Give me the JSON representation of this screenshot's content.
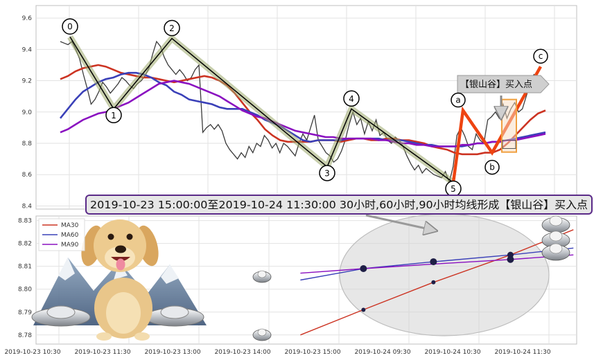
{
  "colors": {
    "price": "#3a3a3a",
    "ma30": "#cc3322",
    "ma60": "#3a40b8",
    "ma90": "#8a10c0",
    "wave": "#000000",
    "wave_halo": "#9aa86a",
    "signal": "#ee4411",
    "highlight": "#f0a040"
  },
  "chart_data": [
    {
      "type": "line",
      "panel": "top",
      "ylim": [
        8.38,
        9.68
      ],
      "yticks": [
        "8.4",
        "8.6",
        "8.8",
        "9.0",
        "9.2",
        "9.4",
        "9.6"
      ],
      "grid": true,
      "series": [
        {
          "key": "price",
          "values": [
            9.45,
            9.44,
            9.43,
            9.45,
            9.4,
            9.34,
            9.24,
            9.15,
            9.05,
            9.08,
            9.13,
            9.19,
            9.16,
            9.12,
            9.15,
            9.18,
            9.22,
            9.2,
            9.17,
            9.15,
            9.18,
            9.2,
            9.23,
            9.28,
            9.37,
            9.45,
            9.42,
            9.35,
            9.3,
            9.27,
            9.24,
            9.27,
            9.24,
            9.2,
            9.22,
            9.27,
            9.3,
            8.87,
            8.9,
            8.92,
            8.89,
            8.92,
            8.88,
            8.8,
            8.76,
            8.73,
            8.7,
            8.74,
            8.71,
            8.78,
            8.74,
            8.8,
            8.78,
            8.85,
            8.82,
            8.77,
            8.8,
            8.74,
            8.8,
            8.78,
            8.75,
            8.72,
            8.8,
            8.86,
            8.82,
            8.9,
            8.98,
            8.82,
            8.78,
            8.74,
            8.72,
            8.68,
            8.7,
            8.75,
            8.82,
            8.92,
            9.0,
            8.92,
            8.96,
            8.86,
            8.94,
            8.88,
            8.95,
            8.85,
            8.87,
            8.82,
            8.8,
            8.84,
            8.82,
            8.78,
            8.72,
            8.67,
            8.63,
            8.66,
            8.61,
            8.64,
            8.62,
            8.6,
            8.59,
            8.58,
            8.62,
            8.55,
            8.65,
            8.85,
            8.9,
            8.85,
            8.78,
            8.76,
            8.86,
            8.82,
            8.8,
            8.95,
            8.97,
            9.0,
            8.96,
            9.05,
            8.96,
            9.02,
            9.06,
            9.0,
            9.02,
            9.1,
            9.18,
            9.24,
            9.22,
            9.2,
            9.19
          ]
        },
        {
          "key": "ma30",
          "values": [
            9.21,
            9.23,
            9.26,
            9.28,
            9.29,
            9.3,
            9.29,
            9.27,
            9.25,
            9.24,
            9.23,
            9.22,
            9.22,
            9.21,
            9.2,
            9.19,
            9.2,
            9.21,
            9.22,
            9.23,
            9.22,
            9.2,
            9.17,
            9.12,
            9.06,
            9.0,
            8.95,
            8.89,
            8.85,
            8.82,
            8.81,
            8.81,
            8.81,
            8.81,
            8.82,
            8.82,
            8.82,
            8.81,
            8.82,
            8.83,
            8.83,
            8.82,
            8.82,
            8.83,
            8.83,
            8.82,
            8.82,
            8.81,
            8.8,
            8.78,
            8.77,
            8.76,
            8.74,
            8.73,
            8.73,
            8.73,
            8.74,
            8.74,
            8.76,
            8.8,
            8.85,
            8.9,
            8.95,
            8.99,
            9.01
          ]
        },
        {
          "key": "ma60",
          "values": [
            8.96,
            9.02,
            9.08,
            9.13,
            9.16,
            9.19,
            9.21,
            9.22,
            9.24,
            9.25,
            9.25,
            9.24,
            9.22,
            9.19,
            9.17,
            9.13,
            9.11,
            9.08,
            9.07,
            9.06,
            9.05,
            9.03,
            9.02,
            9.02,
            9.02,
            9.0,
            8.98,
            8.95,
            8.93,
            8.91,
            8.88,
            8.85,
            8.82,
            8.81,
            8.82,
            8.82,
            8.82,
            8.82,
            8.83,
            8.83,
            8.83,
            8.83,
            8.83,
            8.82,
            8.82,
            8.82,
            8.81,
            8.8,
            8.79,
            8.79,
            8.78,
            8.78,
            8.78,
            8.78,
            8.79,
            8.8,
            8.8,
            8.81,
            8.81,
            8.82,
            8.83,
            8.84,
            8.85,
            8.86,
            8.87
          ]
        },
        {
          "key": "ma90",
          "values": [
            8.87,
            8.89,
            8.92,
            8.95,
            8.97,
            8.99,
            9.0,
            9.02,
            9.04,
            9.06,
            9.09,
            9.12,
            9.15,
            9.18,
            9.19,
            9.2,
            9.19,
            9.18,
            9.16,
            9.14,
            9.12,
            9.1,
            9.07,
            9.04,
            9.01,
            8.99,
            8.97,
            8.96,
            8.94,
            8.92,
            8.9,
            8.88,
            8.87,
            8.86,
            8.85,
            8.84,
            8.84,
            8.83,
            8.83,
            8.83,
            8.83,
            8.83,
            8.82,
            8.82,
            8.81,
            8.8,
            8.8,
            8.79,
            8.79,
            8.78,
            8.78,
            8.78,
            8.78,
            8.79,
            8.79,
            8.8,
            8.8,
            8.81,
            8.81,
            8.82,
            8.82,
            8.83,
            8.84,
            8.85,
            8.86
          ]
        }
      ],
      "wave_points": [
        {
          "label": "0",
          "t": 0.02,
          "y": 9.48
        },
        {
          "label": "1",
          "t": 0.11,
          "y": 9.02
        },
        {
          "label": "2",
          "t": 0.23,
          "y": 9.47
        },
        {
          "label": "3",
          "t": 0.55,
          "y": 8.65
        },
        {
          "label": "4",
          "t": 0.6,
          "y": 9.02
        },
        {
          "label": "5",
          "t": 0.81,
          "y": 8.55
        }
      ],
      "signal_points": [
        {
          "label": "a",
          "t": 0.83,
          "y": 9.01
        },
        {
          "label": "b",
          "t": 0.89,
          "y": 8.74
        },
        {
          "label": "c",
          "t": 0.99,
          "y": 9.29
        }
      ],
      "callout": "【银山谷】买入点"
    },
    {
      "type": "line",
      "panel": "bottom",
      "ylim": [
        8.776,
        8.832
      ],
      "yticks": [
        "8.78",
        "8.79",
        "8.80",
        "8.81",
        "8.82",
        "8.83"
      ],
      "x_tick_labels": [
        "2019-10-23 10:30",
        "2019-10-23 11:30",
        "2019-10-23 13:00",
        "2019-10-23 14:00",
        "2019-10-23 15:00",
        "2019-10-24 09:30",
        "2019-10-24 10:30",
        "2019-10-24 11:30"
      ],
      "grid": true,
      "legend_position": "top-left",
      "series": [
        {
          "key": "ma30",
          "name": "MA30",
          "x": [
            3.9,
            4.8,
            5.8,
            6.9,
            7.8
          ],
          "values": [
            8.78,
            8.791,
            8.803,
            8.815,
            8.826
          ]
        },
        {
          "key": "ma60",
          "name": "MA60",
          "x": [
            3.9,
            4.8,
            5.8,
            6.9,
            7.8
          ],
          "values": [
            8.804,
            8.809,
            8.812,
            8.815,
            8.818
          ]
        },
        {
          "key": "ma90",
          "name": "MA90",
          "x": [
            3.9,
            4.8,
            5.8,
            6.9,
            7.8
          ],
          "values": [
            8.807,
            8.809,
            8.811,
            8.813,
            8.815
          ]
        }
      ],
      "markers": [
        {
          "x": 4.8,
          "y": 8.791,
          "r": 3
        },
        {
          "x": 5.8,
          "y": 8.803,
          "r": 3
        },
        {
          "x": 4.8,
          "y": 8.809,
          "r": 5
        },
        {
          "x": 5.8,
          "y": 8.812,
          "r": 5
        },
        {
          "x": 6.9,
          "y": 8.815,
          "r": 4.5
        },
        {
          "x": 6.9,
          "y": 8.813,
          "r": 5
        }
      ]
    }
  ],
  "banner": {
    "text": "2019-10-23 15:00:00至2019-10-24 11:30:00 30小时,60小时,90小时均线形成【银山谷】买入点"
  }
}
